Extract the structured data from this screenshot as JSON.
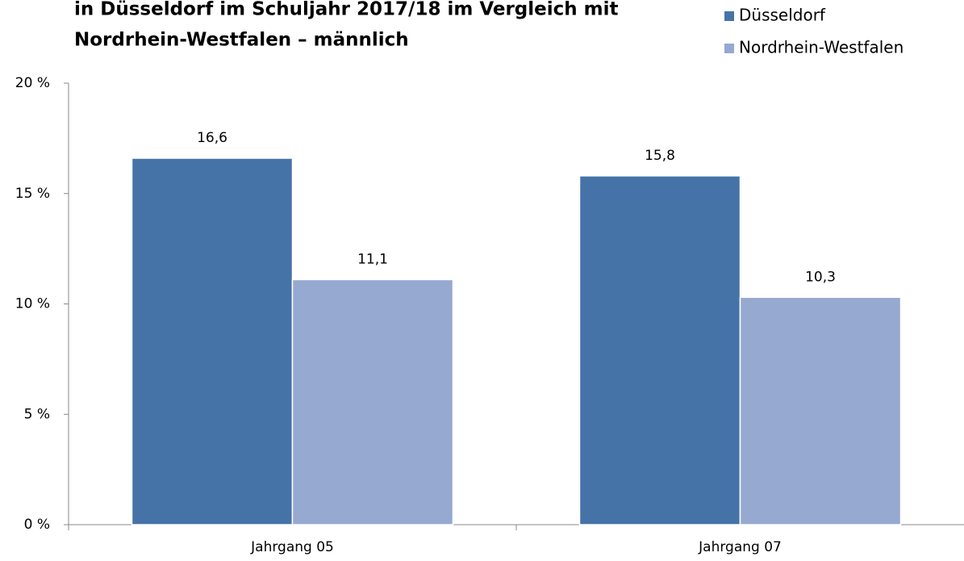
{
  "chart_data": {
    "type": "bar",
    "title": [
      "in Düsseldorf im Schuljahr 2017/18 im Vergleich mit",
      "Nordrhein-Westfalen – männlich"
    ],
    "categories": [
      "Jahrgang 05",
      "Jahrgang 07"
    ],
    "series": [
      {
        "name": "Düsseldorf",
        "color": "#4673a7",
        "values": [
          16.6,
          15.8
        ],
        "value_labels": [
          "16,6",
          "15,8"
        ]
      },
      {
        "name": "Nordrhein-Westfalen",
        "color": "#95a9d1",
        "values": [
          11.1,
          10.3
        ],
        "value_labels": [
          "11,1",
          "10,3"
        ]
      }
    ],
    "ylim": [
      0,
      20
    ],
    "yticks": [
      {
        "value": 0,
        "label": "0 %"
      },
      {
        "value": 5,
        "label": "5 %"
      },
      {
        "value": 10,
        "label": "10 %"
      },
      {
        "value": 15,
        "label": "15 %"
      },
      {
        "value": 20,
        "label": "20 %"
      }
    ],
    "legend": "top-right"
  }
}
